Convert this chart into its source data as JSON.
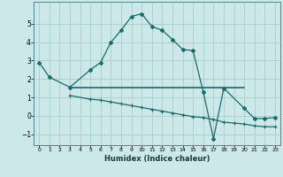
{
  "xlabel": "Humidex (Indice chaleur)",
  "background_color": "#cce8e8",
  "grid_color": "#aacccc",
  "line_color": "#1a6b6b",
  "line1_x": [
    0,
    1,
    3,
    5,
    6,
    7,
    8,
    9,
    10,
    11,
    12,
    13,
    14,
    15,
    16,
    17,
    18,
    20,
    21,
    22,
    23
  ],
  "line1_y": [
    2.9,
    2.1,
    1.55,
    2.5,
    2.9,
    4.0,
    4.65,
    5.4,
    5.55,
    4.85,
    4.65,
    4.15,
    3.6,
    3.55,
    1.3,
    -1.25,
    1.5,
    0.4,
    -0.15,
    -0.15,
    -0.1
  ],
  "line2_x": [
    3,
    5,
    6,
    7,
    8,
    9,
    10,
    11,
    12,
    13,
    14,
    15,
    16,
    17,
    18,
    19,
    20,
    21,
    22,
    23
  ],
  "line2_y": [
    1.1,
    0.9,
    0.85,
    0.75,
    0.65,
    0.55,
    0.45,
    0.35,
    0.25,
    0.15,
    0.05,
    -0.05,
    -0.1,
    -0.2,
    -0.35,
    -0.4,
    -0.45,
    -0.55,
    -0.6,
    -0.6
  ],
  "line3_x": [
    3,
    20
  ],
  "line3_y": [
    1.55,
    1.55
  ],
  "xlim": [
    -0.5,
    23.5
  ],
  "ylim": [
    -1.6,
    6.2
  ],
  "yticks": [
    -1,
    0,
    1,
    2,
    3,
    4,
    5
  ],
  "xticks": [
    0,
    1,
    2,
    3,
    4,
    5,
    6,
    7,
    8,
    9,
    10,
    11,
    12,
    13,
    14,
    15,
    16,
    17,
    18,
    19,
    20,
    21,
    22,
    23
  ]
}
